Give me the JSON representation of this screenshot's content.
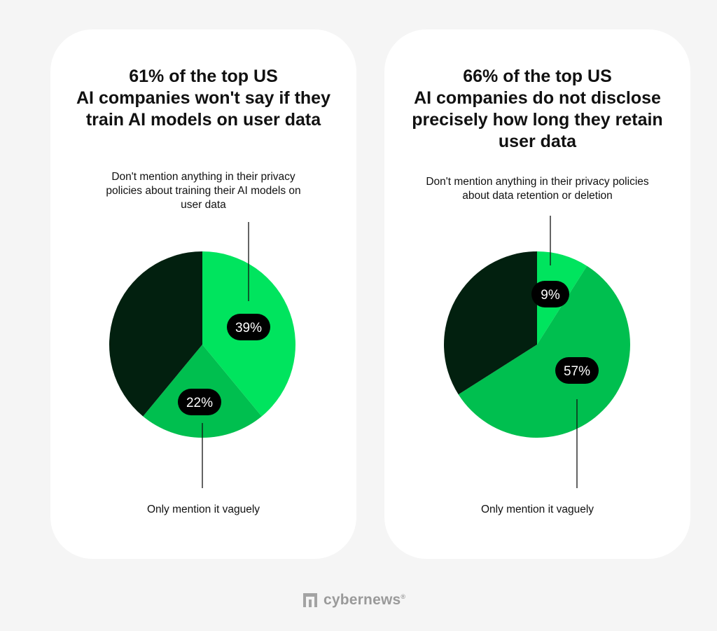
{
  "colors": {
    "background": "#f5f5f5",
    "card": "#ffffff",
    "dark": "#02200f",
    "bright_green": "#00e45e",
    "mid_green": "#00bf4f",
    "pill": "#000000",
    "pill_text": "#ffffff"
  },
  "cards": [
    {
      "title_lines": [
        "61% of the top US",
        "AI companies won't say if they",
        "train AI models on user data"
      ],
      "top_note_lines": [
        "Don't mention anything in their privacy",
        "policies about training their AI models on",
        "user data"
      ],
      "bottom_note": "Only mention it vaguely"
    },
    {
      "title_lines": [
        "66% of the top US",
        "AI companies do not disclose",
        "precisely how long they retain",
        "user data"
      ],
      "top_note_lines": [
        "Don't mention anything in their privacy policies",
        "about data retention or deletion"
      ],
      "bottom_note": "Only mention it vaguely"
    }
  ],
  "chart_data": [
    {
      "type": "pie",
      "title": "61% of the top US AI companies won't say if they train AI models on user data",
      "slices": [
        {
          "label": "39%",
          "value": 39,
          "color": "#00e45e",
          "annotation": "Don't mention anything in their privacy policies about training their AI models on user data"
        },
        {
          "label": "22%",
          "value": 22,
          "color": "#00bf4f",
          "annotation": "Only mention it vaguely"
        },
        {
          "label": "",
          "value": 39,
          "color": "#02200f",
          "annotation": ""
        }
      ]
    },
    {
      "type": "pie",
      "title": "66% of the top US AI companies do not disclose precisely how long they retain user data",
      "slices": [
        {
          "label": "9%",
          "value": 9,
          "color": "#00e45e",
          "annotation": "Don't mention anything in their privacy policies about data retention or deletion"
        },
        {
          "label": "57%",
          "value": 57,
          "color": "#00bf4f",
          "annotation": "Only mention it vaguely"
        },
        {
          "label": "",
          "value": 34,
          "color": "#02200f",
          "annotation": ""
        }
      ]
    }
  ],
  "brand": {
    "name": "cybernews",
    "mark": "®",
    "icon": "cybernews-logo-icon"
  }
}
